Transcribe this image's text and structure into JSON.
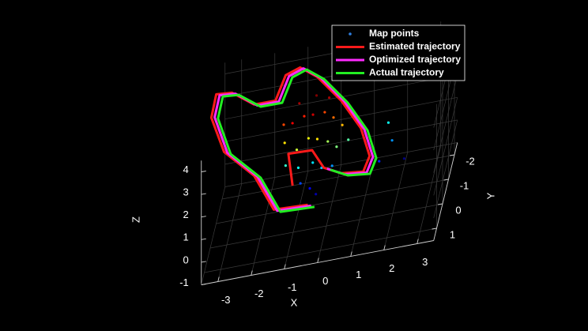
{
  "chart_data": {
    "type": "scatter3d",
    "xlabel": "X",
    "ylabel": "Y",
    "zlabel": "Z",
    "xlim": [
      -3.5,
      3.5
    ],
    "ylim": [
      -2.5,
      1.5
    ],
    "zlim": [
      -1,
      4.5
    ],
    "xticks": [
      -3,
      -2,
      -1,
      0,
      1,
      2,
      3
    ],
    "yticks": [
      -2,
      -1,
      0,
      1
    ],
    "zticks": [
      -1,
      0,
      1,
      2,
      3,
      4
    ],
    "grid": true,
    "legend": "upper right",
    "series": [
      {
        "name": "Map points",
        "type": "scatter",
        "color": "#2f7fe0",
        "colormap": "jet",
        "x": [
          -1.5,
          -1.2,
          -0.9,
          -0.6,
          -0.3,
          0.0,
          0.3,
          -1.4,
          -1.0,
          -0.7,
          -0.4,
          -0.1,
          0.2,
          0.5,
          -1.3,
          -0.9,
          -0.5,
          -0.2,
          0.1,
          -0.8,
          -0.5,
          -0.3,
          1.6,
          1.8,
          1.5,
          2.2,
          -1.1,
          -0.6,
          -0.2
        ],
        "y": [
          -1.2,
          -1.0,
          -1.3,
          -1.1,
          -1.4,
          -1.2,
          -1.0,
          -0.8,
          -0.6,
          -0.9,
          -0.7,
          -0.8,
          -0.6,
          -0.9,
          -0.4,
          -0.3,
          -0.5,
          -0.3,
          -0.4,
          -0.1,
          0.0,
          0.1,
          -1.5,
          -1.0,
          -0.5,
          -0.8,
          -1.6,
          -1.7,
          -1.6
        ],
        "z": [
          2.6,
          2.8,
          2.7,
          2.9,
          2.6,
          2.5,
          2.3,
          2.2,
          2.0,
          2.1,
          2.2,
          1.9,
          1.8,
          1.7,
          1.6,
          1.5,
          1.4,
          1.3,
          1.2,
          1.0,
          0.8,
          0.6,
          1.5,
          1.2,
          0.9,
          0.5,
          3.0,
          3.1,
          3.0
        ]
      },
      {
        "name": "Estimated trajectory",
        "type": "line",
        "color": "#ff1a1a",
        "x": [
          -0.47,
          -1.44,
          -2.09,
          -3.03,
          -3.52,
          -3.55,
          -3.11,
          -2.41,
          -1.82,
          -1.62,
          -1.24,
          -0.7,
          0.05,
          0.72,
          1.07,
          0.95,
          0.3,
          -0.24,
          -0.61,
          -1.27,
          -1.02
        ],
        "y": [
          0.5,
          0.8,
          0.5,
          0.3,
          -0.3,
          -1.3,
          -1.5,
          -1.3,
          -1.6,
          -2.2,
          -2.5,
          -2.4,
          -2.2,
          -1.8,
          -1.3,
          -0.9,
          -0.8,
          -0.9,
          -1.0,
          -0.7,
          0.0
        ],
        "z": [
          0.61,
          0.99,
          2.35,
          3.45,
          4.45,
          4.41,
          4.14,
          3.64,
          3.32,
          3.74,
          3.65,
          3.19,
          2.15,
          1.17,
          0.39,
          0.16,
          0.38,
          0.67,
          1.44,
          1.79,
          1.07
        ]
      },
      {
        "name": "Optimized trajectory",
        "type": "line",
        "color": "#ff2bff",
        "x": [
          -0.37,
          -1.34,
          -1.99,
          -2.93,
          -3.42,
          -3.45,
          -3.01,
          -2.31,
          -1.72,
          -1.52,
          -1.14,
          -0.6,
          0.15,
          0.82,
          1.17,
          1.05,
          0.4,
          -0.14
        ],
        "y": [
          0.5,
          0.8,
          0.5,
          0.3,
          -0.3,
          -1.3,
          -1.5,
          -1.3,
          -1.6,
          -2.2,
          -2.5,
          -2.4,
          -2.2,
          -1.8,
          -1.3,
          -0.9,
          -0.8,
          -0.9
        ],
        "z": [
          0.54,
          0.92,
          2.28,
          3.38,
          4.44,
          4.34,
          4.07,
          3.57,
          3.25,
          3.67,
          3.58,
          3.12,
          2.08,
          1.1,
          0.32,
          0.09,
          0.31,
          0.6
        ]
      },
      {
        "name": "Actual trajectory",
        "type": "line",
        "color": "#22ee22",
        "x": [
          -0.27,
          -1.24,
          -1.89,
          -2.83,
          -3.32,
          -3.35,
          -2.91,
          -2.21,
          -1.62,
          -1.42,
          -1.04,
          -0.5,
          0.25,
          0.92,
          1.27,
          1.15,
          0.5,
          -0.04
        ],
        "y": [
          0.5,
          0.8,
          0.5,
          0.3,
          -0.3,
          -1.3,
          -1.5,
          -1.3,
          -1.6,
          -2.2,
          -2.5,
          -2.4,
          -2.2,
          -1.8,
          -1.3,
          -0.9,
          -0.8,
          -0.9
        ],
        "z": [
          0.46,
          0.84,
          2.2,
          3.3,
          4.36,
          4.26,
          3.99,
          3.49,
          3.17,
          3.59,
          3.5,
          3.04,
          2.0,
          1.02,
          0.24,
          0.01,
          0.23,
          0.52
        ]
      }
    ]
  }
}
